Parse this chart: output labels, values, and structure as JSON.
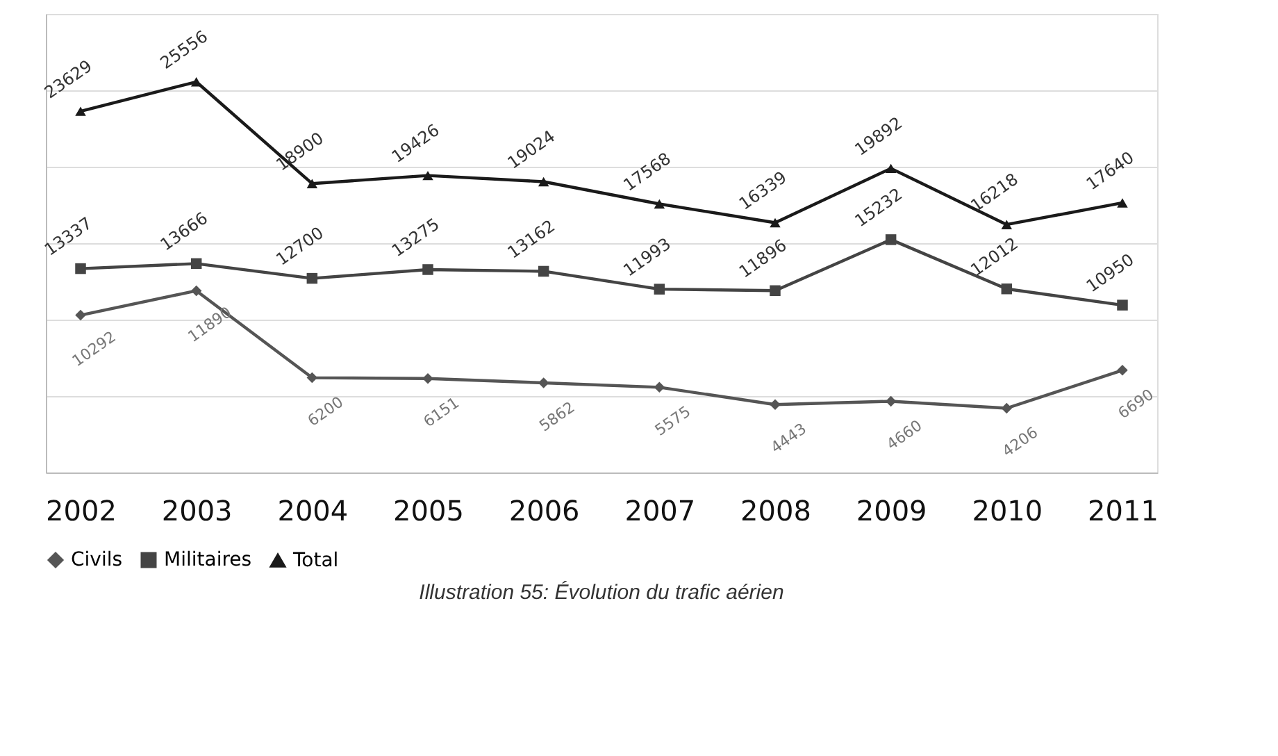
{
  "chart_data": {
    "type": "line",
    "title": "Illustration 55: Évolution du trafic aérien",
    "categories": [
      "2002",
      "2003",
      "2004",
      "2005",
      "2006",
      "2007",
      "2008",
      "2009",
      "2010",
      "2011"
    ],
    "series": [
      {
        "name": "Civils",
        "color": "#555555",
        "marker": "diamond",
        "values": [
          10292,
          11890,
          6200,
          6151,
          5862,
          5575,
          4443,
          4660,
          4206,
          6690
        ]
      },
      {
        "name": "Militaires",
        "color": "#444444",
        "marker": "square",
        "values": [
          13337,
          13666,
          12700,
          13275,
          13162,
          11993,
          11896,
          15232,
          12012,
          10950
        ]
      },
      {
        "name": "Total",
        "color": "#1a1a1a",
        "marker": "triangle",
        "values": [
          23629,
          25556,
          18900,
          19426,
          19024,
          17568,
          16339,
          19892,
          16218,
          17640
        ]
      }
    ],
    "ylim": [
      0,
      30000
    ],
    "yticks": [
      {
        "value": 0,
        "label": null
      },
      {
        "value": 5000,
        "label": null
      },
      {
        "value": 10000,
        "label": null
      },
      {
        "value": 15000,
        "label": null
      },
      {
        "value": 20000,
        "label": null
      },
      {
        "value": 25000,
        "label": null
      },
      {
        "value": 30000,
        "label": null
      }
    ],
    "tick_labels": "x",
    "grid": "y",
    "legend": "bottom",
    "data_labels": true,
    "line_style": "solid"
  }
}
